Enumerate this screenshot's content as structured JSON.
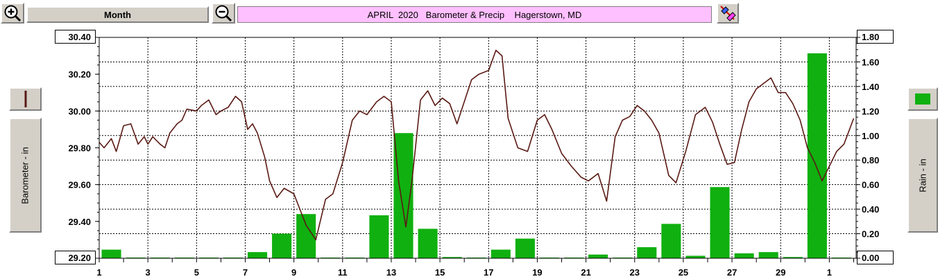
{
  "toolbar": {
    "zoom_in_icon": "magnifier-plus-icon",
    "period_label": "Month",
    "zoom_out_icon": "magnifier-minus-icon",
    "title": "APRIL  2020   Barometer & Precip    Hagerstown, MD",
    "tool_icon": "eraser-pencil-icon"
  },
  "colors": {
    "barometer": "#5a1a14",
    "rain": "#10b010",
    "title_bg": "#ffc0ff",
    "grid": "#000000"
  },
  "chart_data": {
    "type": "bar+line",
    "title": "APRIL  2020   Barometer & Precip    Hagerstown, MD",
    "ylabel": "Barometer - in",
    "y2label": "Rain - in",
    "ylim": [
      29.2,
      30.4
    ],
    "y2lim": [
      0.0,
      1.8
    ],
    "y_ticks": [
      "30.40",
      "30.20",
      "30.00",
      "29.80",
      "29.60",
      "29.40",
      "29.20"
    ],
    "y_tick_values": [
      30.4,
      30.2,
      30.0,
      29.8,
      29.6,
      29.4,
      29.2
    ],
    "y2_ticks": [
      "1.80",
      "1.60",
      "1.40",
      "1.20",
      "1.00",
      "0.80",
      "0.60",
      "0.40",
      "0.20",
      "0.00"
    ],
    "y2_tick_values": [
      1.8,
      1.6,
      1.4,
      1.2,
      1.0,
      0.8,
      0.6,
      0.4,
      0.2,
      0.0
    ],
    "x_tick_labels": [
      "1",
      "3",
      "5",
      "7",
      "9",
      "11",
      "13",
      "15",
      "17",
      "19",
      "21",
      "23",
      "25",
      "27",
      "29",
      "1"
    ],
    "xlim": [
      1,
      32.1
    ],
    "grid": true,
    "rain": {
      "name": "Rain - in",
      "day": [
        1,
        2,
        3,
        4,
        5,
        6,
        7,
        8,
        9,
        10,
        11,
        12,
        13,
        14,
        15,
        16,
        17,
        18,
        19,
        20,
        21,
        22,
        23,
        24,
        25,
        26,
        27,
        28,
        29,
        30,
        31
      ],
      "values": [
        0.07,
        0.0,
        0.0,
        0.0,
        0.0,
        0.0,
        0.05,
        0.2,
        0.36,
        0.0,
        0.0,
        0.35,
        1.02,
        0.24,
        0.01,
        0.0,
        0.07,
        0.16,
        0.0,
        0.0,
        0.03,
        0.0,
        0.09,
        0.28,
        0.02,
        0.58,
        0.04,
        0.05,
        0.01,
        1.67,
        0.0
      ]
    },
    "barometer": {
      "name": "Barometer - in",
      "x": [
        1.0,
        1.2,
        1.5,
        1.7,
        2.0,
        2.3,
        2.6,
        2.85,
        3.0,
        3.2,
        3.5,
        3.7,
        3.9,
        4.2,
        4.4,
        4.6,
        5.0,
        5.2,
        5.5,
        5.8,
        6.0,
        6.3,
        6.6,
        6.85,
        7.1,
        7.3,
        7.5,
        7.8,
        8.0,
        8.3,
        8.6,
        9.0,
        9.5,
        9.9,
        10.3,
        10.6,
        11.0,
        11.4,
        11.7,
        12.0,
        12.4,
        12.7,
        13.0,
        13.3,
        13.6,
        13.85,
        14.2,
        14.5,
        14.8,
        15.1,
        15.4,
        15.7,
        16.0,
        16.3,
        16.6,
        17.0,
        17.3,
        17.55,
        17.8,
        18.2,
        18.6,
        19.0,
        19.3,
        19.6,
        20.0,
        20.4,
        20.8,
        21.1,
        21.5,
        21.85,
        22.2,
        22.5,
        22.8,
        23.1,
        23.4,
        23.7,
        24.0,
        24.4,
        24.7,
        25.1,
        25.5,
        25.9,
        26.2,
        26.5,
        26.8,
        27.1,
        27.4,
        27.7,
        28.0,
        28.3,
        28.6,
        28.9,
        29.2,
        29.5,
        29.8,
        30.1,
        30.4,
        30.7,
        31.0,
        31.3,
        31.6,
        32.0
      ],
      "values": [
        29.83,
        29.8,
        29.85,
        29.78,
        29.92,
        29.93,
        29.82,
        29.86,
        29.82,
        29.86,
        29.82,
        29.8,
        29.88,
        29.93,
        29.95,
        30.01,
        30.0,
        30.03,
        30.06,
        29.98,
        30.0,
        30.02,
        30.08,
        30.05,
        29.9,
        29.93,
        29.88,
        29.75,
        29.62,
        29.53,
        29.58,
        29.55,
        29.38,
        29.3,
        29.52,
        29.55,
        29.72,
        29.95,
        30.0,
        29.98,
        30.05,
        30.08,
        30.05,
        29.62,
        29.37,
        29.62,
        30.06,
        30.11,
        30.03,
        30.07,
        30.04,
        29.93,
        30.05,
        30.17,
        30.2,
        30.22,
        30.33,
        30.3,
        29.96,
        29.8,
        29.78,
        29.95,
        29.98,
        29.9,
        29.77,
        29.7,
        29.64,
        29.62,
        29.66,
        29.51,
        29.86,
        29.95,
        29.97,
        30.03,
        30.0,
        29.95,
        29.88,
        29.65,
        29.61,
        29.78,
        29.98,
        30.02,
        29.94,
        29.82,
        29.71,
        29.72,
        29.9,
        30.05,
        30.12,
        30.15,
        30.18,
        30.1,
        30.1,
        30.04,
        29.95,
        29.8,
        29.72,
        29.62,
        29.7,
        29.78,
        29.82,
        29.96
      ]
    }
  }
}
